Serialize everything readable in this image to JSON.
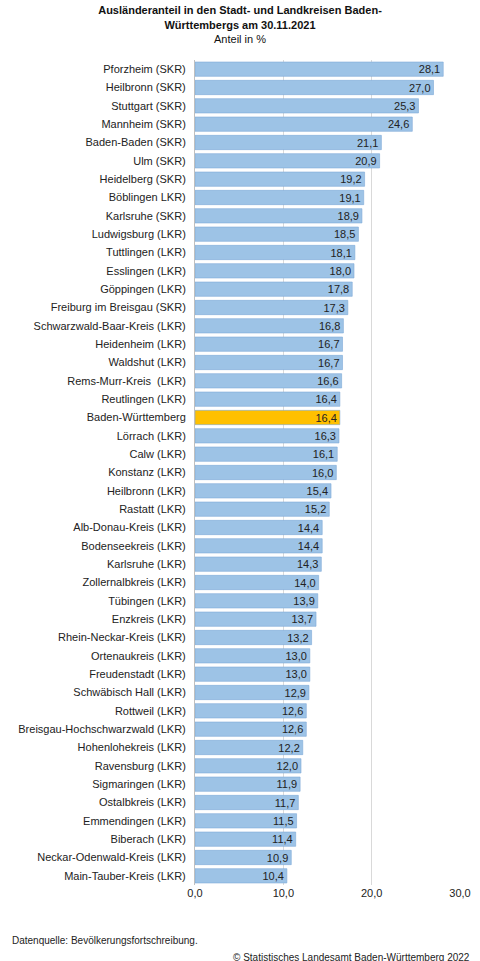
{
  "chart_data": {
    "type": "bar",
    "orientation": "horizontal",
    "title": "Ausländeranteil in den Stadt- und Landkreisen Baden-Württembergs am 30.11.2021",
    "subtitle": "Anteil in %",
    "annotations": [
      "Datenquelle: Bevölkerungsfortschreibung.",
      "© Statistisches Landesamt Baden-Württemberg 2022"
    ],
    "categories": [
      "Pforzheim (SKR)",
      "Heilbronn (SKR)",
      "Stuttgart (SKR)",
      "Mannheim (SKR)",
      "Baden-Baden (SKR)",
      "Ulm (SKR)",
      "Heidelberg (SKR)",
      "Böblingen LKR)",
      "Karlsruhe (SKR)",
      "Ludwigsburg (LKR)",
      "Tuttlingen (LKR)",
      "Esslingen (LKR)",
      "Göppingen (LKR)",
      "Freiburg im Breisgau (SKR)",
      "Schwarzwald-Baar-Kreis (LKR)",
      "Heidenheim (LKR)",
      "Waldshut (LKR)",
      "Rems-Murr-Kreis  (LKR)",
      "Reutlingen (LKR)",
      "Baden-Württemberg",
      "Lörrach (LKR)",
      "Calw (LKR)",
      "Konstanz (LKR)",
      "Heilbronn (LKR)",
      "Rastatt (LKR)",
      "Alb-Donau-Kreis (LKR)",
      "Bodenseekreis (LKR)",
      "Karlsruhe (LKR)",
      "Zollernalbkreis (LKR)",
      "Tübingen (LKR)",
      "Enzkreis (LKR)",
      "Rhein-Neckar-Kreis (LKR)",
      "Ortenaukreis (LKR)",
      "Freudenstadt (LKR)",
      "Schwäbisch Hall (LKR)",
      "Rottweil (LKR)",
      "Breisgau-Hochschwarzwald (LKR)",
      "Hohenlohekreis (LKR)",
      "Ravensburg (LKR)",
      "Sigmaringen (LKR)",
      "Ostalbkreis (LKR)",
      "Emmendingen (LKR)",
      "Biberach (LKR)",
      "Neckar-Odenwald-Kreis (LKR)",
      "Main-Tauber-Kreis (LKR)"
    ],
    "values": [
      28.1,
      27.0,
      25.3,
      24.6,
      21.1,
      20.9,
      19.2,
      19.1,
      18.9,
      18.5,
      18.1,
      18.0,
      17.8,
      17.3,
      16.8,
      16.7,
      16.7,
      16.6,
      16.4,
      16.4,
      16.3,
      16.1,
      16.0,
      15.4,
      15.2,
      14.4,
      14.4,
      14.3,
      14.0,
      13.9,
      13.7,
      13.2,
      13.0,
      13.0,
      12.9,
      12.6,
      12.6,
      12.2,
      12.0,
      11.9,
      11.7,
      11.5,
      11.4,
      10.9,
      10.4
    ],
    "value_labels": [
      "28,1",
      "27,0",
      "25,3",
      "24,6",
      "21,1",
      "20,9",
      "19,2",
      "19,1",
      "18,9",
      "18,5",
      "18,1",
      "18,0",
      "17,8",
      "17,3",
      "16,8",
      "16,7",
      "16,7",
      "16,6",
      "16,4",
      "16,4",
      "16,3",
      "16,1",
      "16,0",
      "15,4",
      "15,2",
      "14,4",
      "14,4",
      "14,3",
      "14,0",
      "13,9",
      "13,7",
      "13,2",
      "13,0",
      "13,0",
      "12,9",
      "12,6",
      "12,6",
      "12,2",
      "12,0",
      "11,9",
      "11,7",
      "11,5",
      "11,4",
      "10,9",
      "10,4"
    ],
    "colors": [
      "#9dc3e6",
      "#9dc3e6",
      "#9dc3e6",
      "#9dc3e6",
      "#9dc3e6",
      "#9dc3e6",
      "#9dc3e6",
      "#9dc3e6",
      "#9dc3e6",
      "#9dc3e6",
      "#9dc3e6",
      "#9dc3e6",
      "#9dc3e6",
      "#9dc3e6",
      "#9dc3e6",
      "#9dc3e6",
      "#9dc3e6",
      "#9dc3e6",
      "#9dc3e6",
      "#ffc000",
      "#9dc3e6",
      "#9dc3e6",
      "#9dc3e6",
      "#9dc3e6",
      "#9dc3e6",
      "#9dc3e6",
      "#9dc3e6",
      "#9dc3e6",
      "#9dc3e6",
      "#9dc3e6",
      "#9dc3e6",
      "#9dc3e6",
      "#9dc3e6",
      "#9dc3e6",
      "#9dc3e6",
      "#9dc3e6",
      "#9dc3e6",
      "#9dc3e6",
      "#9dc3e6",
      "#9dc3e6",
      "#9dc3e6",
      "#9dc3e6",
      "#9dc3e6",
      "#9dc3e6",
      "#9dc3e6"
    ],
    "data_labels": true,
    "xlim": [
      0,
      30
    ],
    "xticks": [
      {
        "value": 0,
        "label": "0,0"
      },
      {
        "value": 10,
        "label": "10,0"
      },
      {
        "value": 20,
        "label": "20,0"
      },
      {
        "value": 30,
        "label": "30,0"
      }
    ],
    "grid": true
  }
}
